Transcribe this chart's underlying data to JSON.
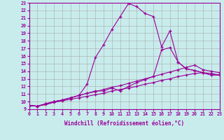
{
  "xlabel": "Windchill (Refroidissement éolien,°C)",
  "bg_color": "#c8ecec",
  "line_color": "#990099",
  "grid_color": "#aaaaaa",
  "xlim": [
    0,
    23
  ],
  "ylim": [
    9,
    23
  ],
  "xticks": [
    0,
    1,
    2,
    3,
    4,
    5,
    6,
    7,
    8,
    9,
    10,
    11,
    12,
    13,
    14,
    15,
    16,
    17,
    18,
    19,
    20,
    21,
    22,
    23
  ],
  "yticks": [
    9,
    10,
    11,
    12,
    13,
    14,
    15,
    16,
    17,
    18,
    19,
    20,
    21,
    22,
    23
  ],
  "line1_y": [
    9.5,
    9.4,
    9.7,
    10.0,
    10.2,
    10.5,
    10.8,
    12.3,
    15.8,
    17.5,
    19.5,
    21.2,
    22.9,
    22.5,
    21.6,
    21.2,
    17.2,
    19.3,
    15.2,
    14.3,
    14.1,
    13.8,
    13.5,
    13.5
  ],
  "line2_y": [
    9.5,
    9.4,
    9.7,
    10.0,
    10.2,
    10.5,
    10.8,
    11.1,
    11.4,
    11.4,
    11.8,
    11.4,
    12.0,
    12.5,
    12.9,
    13.3,
    16.8,
    17.1,
    15.2,
    14.3,
    14.1,
    13.8,
    13.5,
    13.5
  ],
  "line3_y": [
    9.5,
    9.4,
    9.7,
    10.0,
    10.2,
    10.5,
    10.8,
    11.1,
    11.3,
    11.6,
    11.9,
    12.1,
    12.4,
    12.7,
    13.0,
    13.3,
    13.6,
    13.9,
    14.2,
    14.5,
    14.8,
    14.2,
    14.0,
    13.8
  ],
  "line4_y": [
    9.5,
    9.4,
    9.6,
    9.9,
    10.1,
    10.3,
    10.5,
    10.7,
    10.9,
    11.1,
    11.4,
    11.6,
    11.8,
    12.0,
    12.3,
    12.5,
    12.8,
    13.0,
    13.3,
    13.5,
    13.7,
    13.8,
    13.7,
    13.5
  ]
}
